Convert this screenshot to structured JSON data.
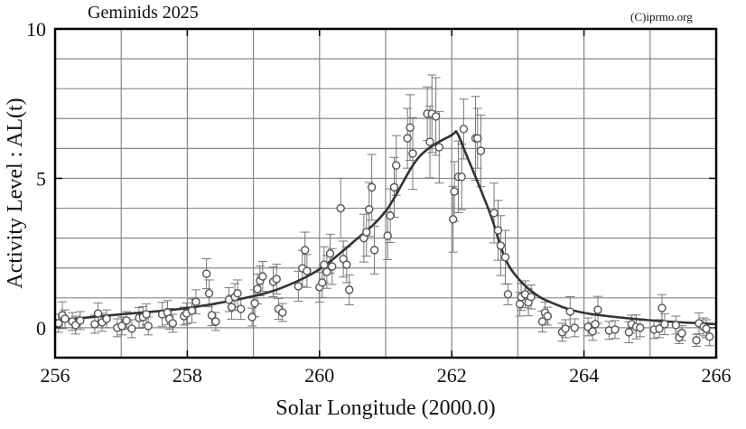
{
  "chart_data": {
    "type": "scatter",
    "title": "Geminids 2025",
    "credit": "(C)iprmo.org",
    "xlabel": "Solar Longitude (2000.0)",
    "ylabel": "Activity Level : AL(t)",
    "xlim": [
      256,
      266
    ],
    "ylim": [
      -1,
      10
    ],
    "x_ticks": [
      "256",
      "258",
      "260",
      "262",
      "264",
      "266"
    ],
    "y_ticks": [
      "0",
      "5",
      "10"
    ],
    "grid": true,
    "colors": {
      "points": "#555555",
      "error_bars": "#777777",
      "fit_curve": "#333333",
      "grid": "#888888"
    },
    "observations": {
      "x": [
        256.05,
        256.11,
        256.15,
        256.26,
        256.31,
        256.38,
        256.6,
        256.65,
        256.71,
        256.78,
        256.94,
        257.01,
        257.08,
        257.16,
        257.27,
        257.33,
        257.38,
        257.41,
        257.62,
        257.7,
        257.73,
        257.78,
        257.95,
        257.99,
        258.07,
        258.13,
        258.29,
        258.33,
        258.37,
        258.43,
        258.63,
        258.67,
        258.72,
        258.76,
        258.81,
        258.98,
        259.02,
        259.06,
        259.1,
        259.14,
        259.3,
        259.35,
        259.38,
        259.44,
        259.68,
        259.74,
        259.78,
        259.81,
        260.0,
        260.04,
        260.07,
        260.11,
        260.16,
        260.19,
        260.32,
        260.36,
        260.41,
        260.45,
        260.67,
        260.71,
        260.75,
        260.79,
        260.83,
        261.03,
        261.07,
        261.13,
        261.16,
        261.33,
        261.37,
        261.41,
        261.63,
        261.67,
        261.7,
        261.76,
        261.81,
        262.02,
        262.04,
        262.1,
        262.15,
        262.18,
        262.36,
        262.39,
        262.44,
        262.64,
        262.7,
        262.74,
        262.81,
        262.85,
        263.03,
        263.05,
        263.11,
        263.16,
        263.2,
        263.37,
        263.41,
        263.45,
        263.67,
        263.72,
        263.79,
        263.86,
        264.06,
        264.13,
        264.17,
        264.21,
        264.38,
        264.47,
        264.68,
        264.72,
        264.79,
        264.85,
        265.06,
        265.14,
        265.18,
        265.22,
        265.39,
        265.44,
        265.48,
        265.7,
        265.74,
        265.81,
        265.85,
        265.9
      ],
      "y": [
        0.15,
        0.42,
        0.3,
        0.21,
        0.09,
        0.24,
        0.12,
        0.48,
        0.18,
        0.3,
        0.0,
        0.06,
        0.24,
        -0.03,
        0.33,
        0.36,
        0.45,
        0.06,
        0.45,
        0.51,
        0.3,
        0.15,
        0.39,
        0.48,
        0.57,
        0.87,
        1.81,
        1.15,
        0.42,
        0.21,
        0.94,
        0.69,
        1.03,
        1.15,
        0.63,
        0.36,
        0.82,
        1.3,
        1.57,
        1.72,
        1.54,
        1.63,
        0.63,
        0.51,
        1.39,
        1.99,
        2.6,
        1.9,
        1.36,
        1.51,
        2.11,
        1.87,
        2.48,
        2.05,
        4.0,
        2.3,
        2.11,
        1.27,
        3.0,
        3.2,
        3.96,
        4.7,
        2.6,
        3.08,
        3.75,
        4.7,
        5.43,
        6.34,
        6.7,
        5.83,
        7.16,
        6.22,
        7.16,
        7.07,
        6.04,
        3.63,
        4.56,
        5.05,
        5.05,
        6.65,
        6.34,
        6.34,
        5.92,
        3.84,
        3.26,
        2.75,
        2.36,
        1.12,
        0.79,
        1.03,
        1.12,
        0.85,
        1.03,
        0.21,
        0.51,
        0.39,
        -0.15,
        -0.03,
        0.54,
        0.0,
        0.03,
        -0.12,
        0.12,
        0.6,
        -0.09,
        -0.06,
        -0.15,
        0.12,
        0.03,
        0.0,
        -0.06,
        -0.03,
        0.66,
        0.12,
        0.09,
        -0.33,
        -0.18,
        -0.42,
        0.15,
        0.03,
        -0.03,
        -0.3
      ],
      "error": [
        0.3,
        0.45,
        0.3,
        0.3,
        0.3,
        0.3,
        0.3,
        0.35,
        0.3,
        0.3,
        0.3,
        0.3,
        0.3,
        0.3,
        0.35,
        0.35,
        0.35,
        0.3,
        0.4,
        0.4,
        0.35,
        0.3,
        0.3,
        0.35,
        0.4,
        0.4,
        0.5,
        0.45,
        0.35,
        0.3,
        0.4,
        0.4,
        0.45,
        0.45,
        0.35,
        0.3,
        0.45,
        0.5,
        0.5,
        0.5,
        0.5,
        0.5,
        0.35,
        0.3,
        0.5,
        0.6,
        0.6,
        0.55,
        0.5,
        0.5,
        0.6,
        0.55,
        0.65,
        0.6,
        1.0,
        0.6,
        0.6,
        0.5,
        0.8,
        0.8,
        0.9,
        1.1,
        0.8,
        0.8,
        0.9,
        1.0,
        1.0,
        1.0,
        1.1,
        1.2,
        0.9,
        1.2,
        1.3,
        1.3,
        1.2,
        1.1,
        1.0,
        1.2,
        1.1,
        1.0,
        1.4,
        1.0,
        1.2,
        1.0,
        1.0,
        1.0,
        0.9,
        0.35,
        0.4,
        0.45,
        0.45,
        0.45,
        0.4,
        0.35,
        0.35,
        0.3,
        0.3,
        0.3,
        0.5,
        0.3,
        0.3,
        0.3,
        0.3,
        0.45,
        0.3,
        0.3,
        0.35,
        0.3,
        0.4,
        0.3,
        0.3,
        0.3,
        0.45,
        0.35,
        0.3,
        0.2,
        0.25,
        0.2,
        0.35,
        0.3,
        0.3,
        0.3
      ]
    },
    "fit_curve": {
      "x": [
        256,
        257,
        258,
        259,
        259.5,
        260,
        260.5,
        261,
        261.5,
        262,
        262.08,
        262.2,
        262.4,
        262.6,
        262.8,
        263,
        263.25,
        263.5,
        264,
        265,
        266
      ],
      "y": [
        0.24,
        0.45,
        0.66,
        1.06,
        1.4,
        1.96,
        2.85,
        3.9,
        5.7,
        6.45,
        6.52,
        5.9,
        4.83,
        3.7,
        2.36,
        1.66,
        1.15,
        0.85,
        0.5,
        0.25,
        0.12
      ]
    }
  }
}
